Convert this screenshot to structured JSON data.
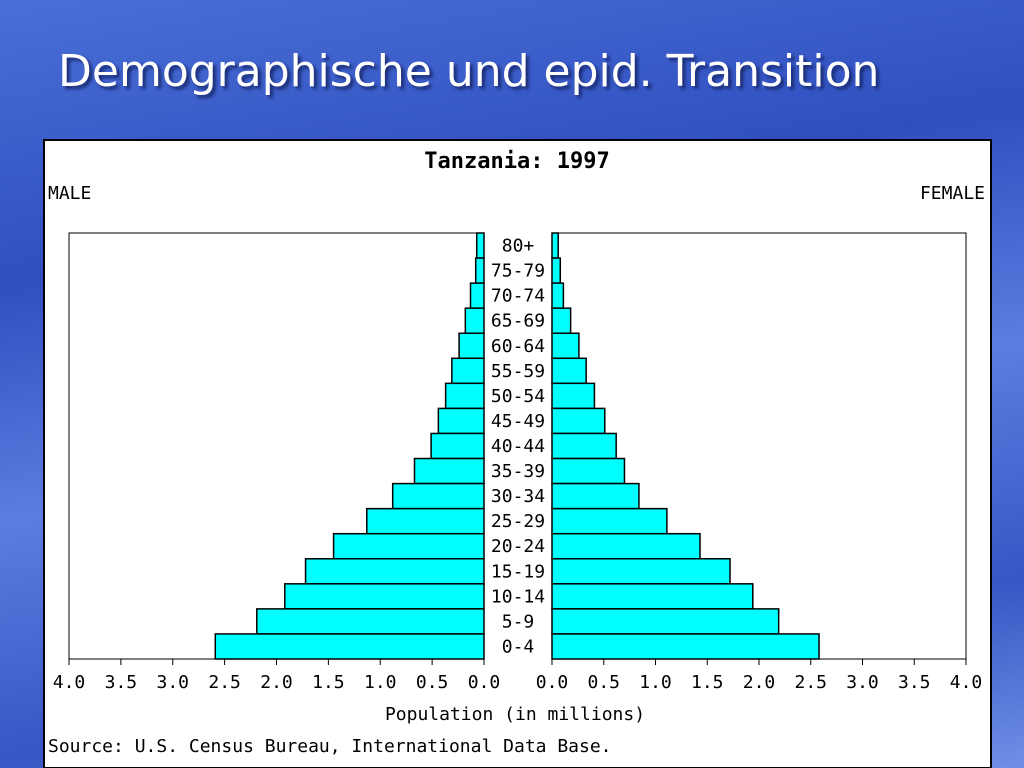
{
  "slide_title": "Demographische und epid. Transition",
  "chart_data": {
    "type": "pyramid",
    "title": "Tanzania: 1997",
    "categories": [
      "80+",
      "75-79",
      "70-74",
      "65-69",
      "60-64",
      "55-59",
      "50-54",
      "45-49",
      "40-44",
      "35-39",
      "30-34",
      "25-29",
      "20-24",
      "15-19",
      "10-14",
      "5-9",
      "0-4"
    ],
    "series": [
      {
        "name": "MALE",
        "color": "#00ffff",
        "values": [
          0.07,
          0.08,
          0.13,
          0.18,
          0.24,
          0.31,
          0.37,
          0.44,
          0.51,
          0.67,
          0.88,
          1.13,
          1.45,
          1.72,
          1.92,
          2.19,
          2.59
        ]
      },
      {
        "name": "FEMALE",
        "color": "#00ffff",
        "values": [
          0.06,
          0.08,
          0.11,
          0.18,
          0.26,
          0.33,
          0.41,
          0.51,
          0.62,
          0.7,
          0.84,
          1.11,
          1.43,
          1.72,
          1.94,
          2.19,
          2.58
        ]
      }
    ],
    "xlim": [
      0,
      4
    ],
    "xticks": [
      {
        "value": 0,
        "label": "0.0"
      },
      {
        "value": 0.5,
        "label": "0.5"
      },
      {
        "value": 1,
        "label": "1.0"
      },
      {
        "value": 1.5,
        "label": "1.5"
      },
      {
        "value": 2,
        "label": "2.0"
      },
      {
        "value": 2.5,
        "label": "2.5"
      },
      {
        "value": 3,
        "label": "3.0"
      },
      {
        "value": 3.5,
        "label": "3.5"
      },
      {
        "value": 4,
        "label": "4.0"
      }
    ],
    "xlabel": "Population (in millions)",
    "source": "Source: U.S. Census Bureau, International Data Base."
  }
}
